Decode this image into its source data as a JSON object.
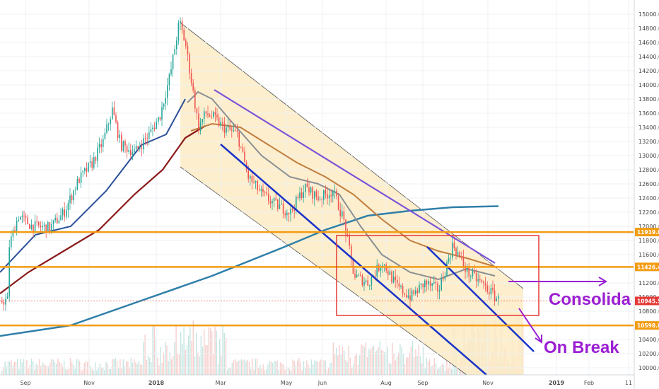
{
  "chart_data": {
    "type": "candlestick",
    "title": "",
    "xlabel": "",
    "ylabel": "",
    "ylim": [
      9900,
      15150
    ],
    "y_ticks": [
      10000,
      10200,
      10400,
      10600,
      10800,
      11000,
      11200,
      11400,
      11600,
      11800,
      12000,
      12200,
      12400,
      12600,
      12800,
      13000,
      13200,
      13400,
      13600,
      13800,
      14000,
      14200,
      14400,
      14600,
      14800,
      15000
    ],
    "x_ticks": [
      {
        "label": "Sep",
        "bold": false
      },
      {
        "label": "Nov",
        "bold": false
      },
      {
        "label": "2018",
        "bold": true
      },
      {
        "label": "Mar",
        "bold": false
      },
      {
        "label": "May",
        "bold": false
      },
      {
        "label": "Jun",
        "bold": false
      },
      {
        "label": "Aug",
        "bold": false
      },
      {
        "label": "Sep",
        "bold": false
      },
      {
        "label": "Nov",
        "bold": false
      },
      {
        "label": "2019",
        "bold": true
      },
      {
        "label": "Feb",
        "bold": false
      },
      {
        "label": "11",
        "bold": false
      }
    ],
    "price_levels": [
      {
        "value": 11919.0,
        "label": "11919.0",
        "color": "#f39c12"
      },
      {
        "value": 11426.4,
        "label": "11426.4",
        "color": "#f39c12"
      },
      {
        "value": 10598.8,
        "label": "10598.8",
        "color": "#f39c12"
      }
    ],
    "last_price": {
      "value": 10945.5,
      "label": "10945.5",
      "color": "#e53935"
    },
    "series": [
      {
        "values": [
          [
            10,
            11650
          ],
          [
            25,
            12150
          ],
          [
            45,
            12000
          ],
          [
            70,
            11980
          ],
          [
            90,
            12200
          ],
          [
            110,
            12650
          ],
          [
            130,
            12900
          ],
          [
            145,
            13200
          ],
          [
            158,
            13650
          ],
          [
            170,
            13150
          ],
          [
            190,
            13050
          ],
          [
            210,
            13300
          ],
          [
            225,
            13550
          ],
          [
            240,
            14150
          ],
          [
            253,
            14900
          ],
          [
            262,
            14550
          ],
          [
            270,
            14050
          ],
          [
            280,
            13400
          ],
          [
            290,
            13600
          ],
          [
            300,
            13550
          ],
          [
            315,
            13400
          ],
          [
            335,
            13300
          ],
          [
            350,
            12700
          ],
          [
            370,
            12450
          ],
          [
            390,
            12300
          ],
          [
            410,
            12200
          ],
          [
            430,
            12550
          ],
          [
            450,
            12400
          ],
          [
            470,
            12500
          ],
          [
            485,
            12100
          ],
          [
            500,
            11300
          ],
          [
            520,
            11200
          ],
          [
            540,
            11500
          ],
          [
            560,
            11150
          ],
          [
            580,
            11000
          ],
          [
            600,
            11200
          ],
          [
            620,
            11100
          ],
          [
            640,
            11750
          ],
          [
            660,
            11350
          ],
          [
            680,
            11200
          ],
          [
            700,
            11000
          ],
          [
            705,
            10950
          ]
        ]
      },
      {
        "values": [
          [
            0,
            11350
          ],
          [
            40,
            11850
          ],
          [
            80,
            11950
          ],
          [
            120,
            12200
          ],
          [
            160,
            12600
          ],
          [
            200,
            12950
          ],
          [
            240,
            13300
          ],
          [
            265,
            13750
          ],
          [
            280,
            13900
          ],
          [
            300,
            13800
          ],
          [
            330,
            13450
          ],
          [
            370,
            13000
          ],
          [
            410,
            12700
          ],
          [
            450,
            12600
          ],
          [
            480,
            12450
          ],
          [
            510,
            12000
          ],
          [
            540,
            11600
          ],
          [
            580,
            11350
          ],
          [
            620,
            11250
          ],
          [
            660,
            11400
          ],
          [
            700,
            11300
          ]
        ]
      },
      {
        "values": [
          [
            0,
            11050
          ],
          [
            50,
            11500
          ],
          [
            100,
            11850
          ],
          [
            150,
            12250
          ],
          [
            200,
            12650
          ],
          [
            240,
            12950
          ],
          [
            270,
            13350
          ],
          [
            300,
            13450
          ],
          [
            340,
            13400
          ],
          [
            380,
            13150
          ],
          [
            420,
            12900
          ],
          [
            460,
            12700
          ],
          [
            500,
            12450
          ],
          [
            540,
            12100
          ],
          [
            580,
            11800
          ],
          [
            620,
            11650
          ],
          [
            660,
            11550
          ],
          [
            700,
            11430
          ]
        ]
      },
      {
        "values": [
          [
            0,
            10450
          ],
          [
            100,
            10600
          ],
          [
            200,
            10950
          ],
          [
            300,
            11300
          ],
          [
            400,
            11700
          ],
          [
            460,
            11950
          ],
          [
            520,
            12150
          ],
          [
            580,
            12220
          ],
          [
            640,
            12270
          ],
          [
            705,
            12285
          ]
        ]
      }
    ],
    "annotations": [
      {
        "text": "Consolida",
        "color": "#9b1fd3"
      },
      {
        "text": "On Break",
        "color": "#9b1fd3"
      }
    ],
    "consolidation_box": {
      "y_range": [
        10740,
        11870
      ],
      "color": "#e53935"
    },
    "colors": {
      "up": "#26a69a",
      "down": "#ef5350",
      "channel_fill": "#fdebc4",
      "channel_line": "#555555",
      "ma_fast": "#8a8f93",
      "ma_mid": "#c07d3e",
      "ma_slow_red": "#8b1a1a",
      "ma_long": "#2f7fa8",
      "ma_blue": "#2a4f9a",
      "trend_purple": "#7a52d8",
      "trend_blue": "#1a33c8",
      "level": "#f39c12"
    }
  }
}
